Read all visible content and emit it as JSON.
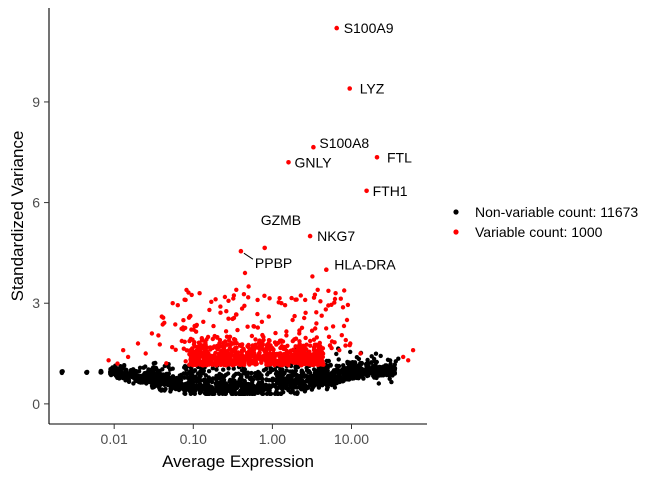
{
  "chart_data": {
    "type": "scatter",
    "xlabel": "Average Expression",
    "ylabel": "Standardized Variance",
    "xscale": "log10",
    "xlim": [
      0.0015,
      90
    ],
    "ylim": [
      -0.6,
      11.8
    ],
    "x_ticks": [
      {
        "value": 0.01,
        "label": "0.01"
      },
      {
        "value": 0.1,
        "label": "0.10"
      },
      {
        "value": 1,
        "label": "1.00"
      },
      {
        "value": 10,
        "label": "10.00"
      }
    ],
    "y_ticks": [
      {
        "value": 0,
        "label": "0"
      },
      {
        "value": 3,
        "label": "3"
      },
      {
        "value": 6,
        "label": "6"
      },
      {
        "value": 9,
        "label": "9"
      }
    ],
    "grid": false,
    "legend_position": "right",
    "series": [
      {
        "name": "Non-variable count: 11673",
        "color": "#000000"
      },
      {
        "name": "Variable count: 1000",
        "color": "#ff0000"
      }
    ],
    "labeled_points": [
      {
        "gene": "S100A9",
        "x": 6.5,
        "y": 11.2
      },
      {
        "gene": "LYZ",
        "x": 9.5,
        "y": 9.4
      },
      {
        "gene": "S100A8",
        "x": 3.3,
        "y": 7.65
      },
      {
        "gene": "FTL",
        "x": 21,
        "y": 7.35
      },
      {
        "gene": "GNLY",
        "x": 1.6,
        "y": 7.2
      },
      {
        "gene": "FTH1",
        "x": 15.5,
        "y": 6.35
      },
      {
        "gene": "GZMB",
        "x": 0.8,
        "y": 4.65
      },
      {
        "gene": "NKG7",
        "x": 3.0,
        "y": 5.0
      },
      {
        "gene": "PPBP",
        "x": 0.4,
        "y": 4.55
      },
      {
        "gene": "HLA-DRA",
        "x": 4.8,
        "y": 4.0
      }
    ]
  }
}
